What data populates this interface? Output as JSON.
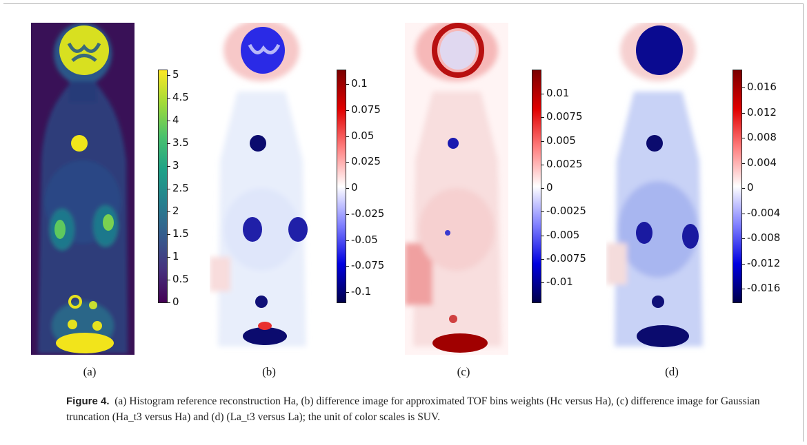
{
  "figure": {
    "panels": [
      {
        "label": "(a)",
        "colormap": "viridis",
        "ticks": [
          "5",
          "4.5",
          "4",
          "3.5",
          "3",
          "2.5",
          "2",
          "1.5",
          "1",
          "0.5",
          "0"
        ]
      },
      {
        "label": "(b)",
        "colormap": "seismic",
        "ticks": [
          "0.1",
          "0.075",
          "0.05",
          "0.025",
          "0",
          "-0.025",
          "-0.05",
          "-0.075",
          "-0.1"
        ]
      },
      {
        "label": "(c)",
        "colormap": "seismic",
        "ticks": [
          "0.01",
          "0.0075",
          "0.005",
          "0.0025",
          "0",
          "-0.0025",
          "-0.005",
          "-0.0075",
          "-0.01"
        ]
      },
      {
        "label": "(d)",
        "colormap": "seismic",
        "ticks": [
          "0.016",
          "0.012",
          "0.008",
          "0.004",
          "0",
          "-0.004",
          "-0.008",
          "-0.012",
          "-0.016"
        ]
      }
    ],
    "caption_label": "Figure 4.",
    "caption_text": "(a) Histogram reference reconstruction Ha, (b) difference image for approximated TOF bins weights (Hc versus Ha), (c) difference image for Gaussian truncation (Ha_t3 versus Ha) and (d) (La_t3 versus La); the unit of color scales is SUV."
  }
}
